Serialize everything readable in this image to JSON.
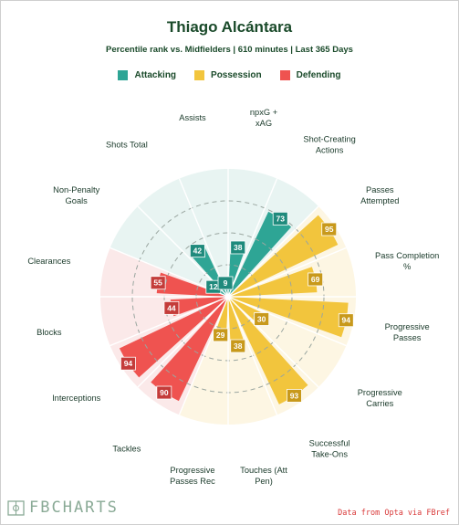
{
  "header": {
    "title": "Thiago Alcántara",
    "subtitle": "Percentile rank vs. Midfielders | 610 minutes | Last 365 Days"
  },
  "legend": [
    {
      "label": "Attacking",
      "color": "#2ea595"
    },
    {
      "label": "Possession",
      "color": "#f2c53d"
    },
    {
      "label": "Defending",
      "color": "#ef5350"
    }
  ],
  "footer": {
    "brand": "FBCHARTS",
    "source": "Data from Opta via FBref"
  },
  "chart_data": {
    "type": "polar-bar",
    "title": "Thiago Alcántara",
    "subtitle": "Percentile rank vs. Midfielders | 610 minutes | Last 365 Days",
    "rlim": [
      0,
      100
    ],
    "grid": true,
    "legend_position": "top",
    "categories": [
      {
        "label": "npxG + xAG",
        "group": "Attacking",
        "value": 38
      },
      {
        "label": "Shot-Creating Actions",
        "group": "Attacking",
        "value": 73
      },
      {
        "label": "Passes Attempted",
        "group": "Possession",
        "value": 95
      },
      {
        "label": "Pass Completion %",
        "group": "Possession",
        "value": 69
      },
      {
        "label": "Progressive Passes",
        "group": "Possession",
        "value": 94
      },
      {
        "label": "Progressive Carries",
        "group": "Possession",
        "value": 30
      },
      {
        "label": "Successful Take-Ons",
        "group": "Possession",
        "value": 93
      },
      {
        "label": "Touches (Att Pen)",
        "group": "Possession",
        "value": 38
      },
      {
        "label": "Progressive Passes Rec",
        "group": "Possession",
        "value": 29
      },
      {
        "label": "Tackles",
        "group": "Defending",
        "value": 90
      },
      {
        "label": "Interceptions",
        "group": "Defending",
        "value": 94
      },
      {
        "label": "Blocks",
        "group": "Defending",
        "value": 44
      },
      {
        "label": "Clearances",
        "group": "Defending",
        "value": 55
      },
      {
        "label": "Non-Penalty Goals",
        "group": "Attacking",
        "value": 12
      },
      {
        "label": "Shots Total",
        "group": "Attacking",
        "value": 42
      },
      {
        "label": "Assists",
        "group": "Attacking",
        "value": 9
      }
    ],
    "group_colors": {
      "Attacking": {
        "bar": "#2ea595",
        "box": "#1f8a7c",
        "bg": "#e8f4f2"
      },
      "Possession": {
        "bar": "#f2c53d",
        "box": "#c8991b",
        "bg": "#fdf6e3"
      },
      "Defending": {
        "bar": "#ef5350",
        "box": "#c43c3a",
        "bg": "#fbe9e9"
      }
    }
  }
}
